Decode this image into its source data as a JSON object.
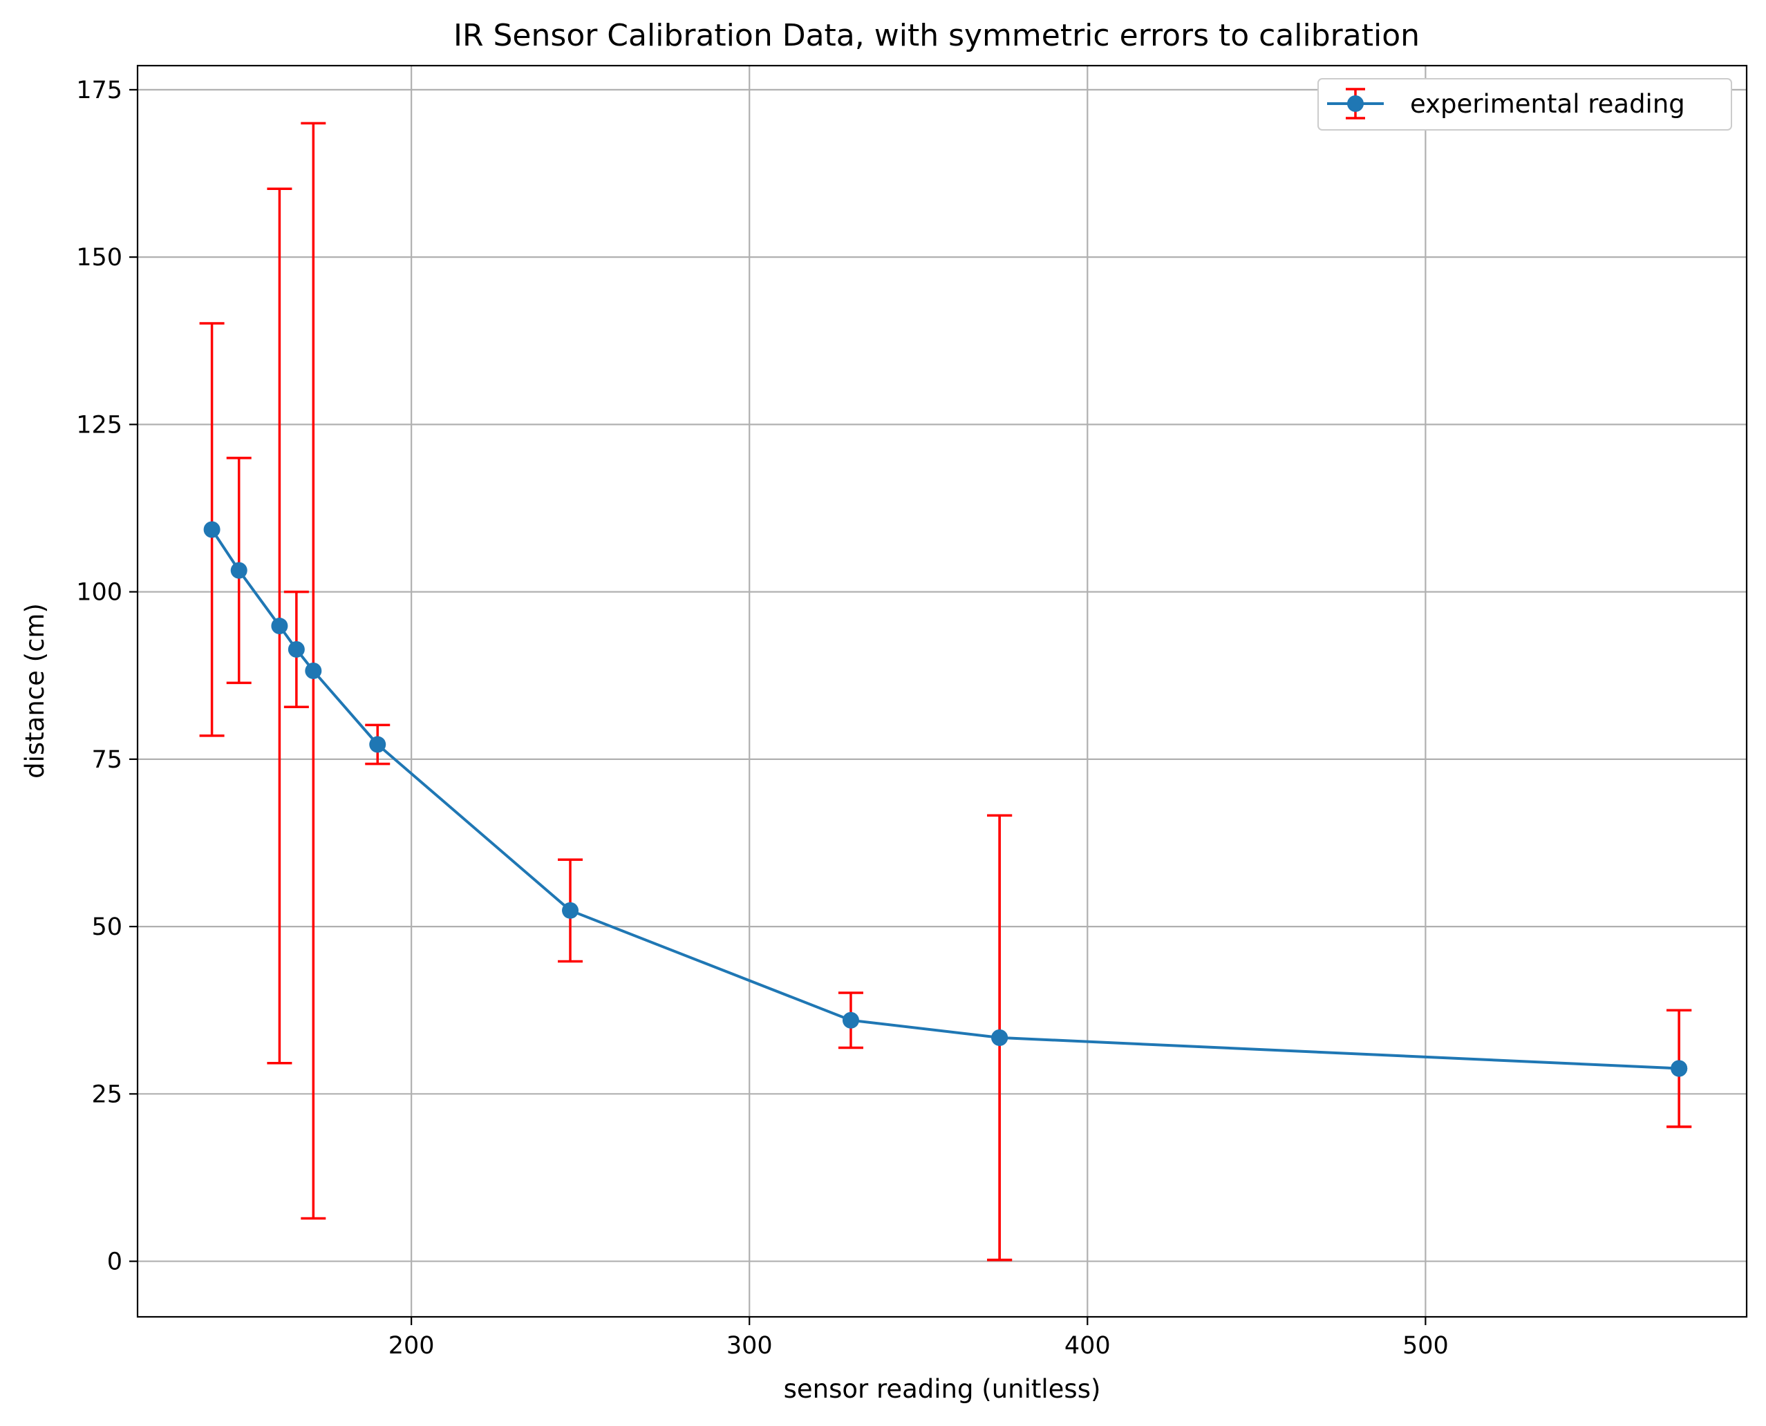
{
  "chart_data": {
    "type": "line",
    "title": "IR Sensor Calibration Data, with symmetric errors to calibration",
    "xlabel": "sensor reading (unitless)",
    "ylabel": "distance (cm)",
    "xlim": [
      119,
      595
    ],
    "ylim": [
      -8.3,
      178.6
    ],
    "xticks": [
      200,
      300,
      400,
      500
    ],
    "yticks": [
      0,
      25,
      50,
      75,
      100,
      125,
      150,
      175
    ],
    "grid": true,
    "legend_position": "top-right",
    "series": [
      {
        "name": "experimental reading",
        "line_color": "#1f77b4",
        "error_color": "#ff0000",
        "x": [
          141,
          149,
          161,
          166,
          171,
          190,
          247,
          330,
          374,
          575,
          575,
          374
        ],
        "y": [
          109.3,
          103.2,
          94.9,
          91.4,
          88.2,
          77.2,
          52.4,
          36.0,
          33.4,
          28.8,
          28.8,
          33.4
        ],
        "yerr": [
          30.8,
          16.8,
          65.3,
          8.6,
          81.8,
          2.9,
          7.6,
          4.1,
          33.2,
          8.7,
          8.7,
          33.2
        ]
      }
    ]
  }
}
